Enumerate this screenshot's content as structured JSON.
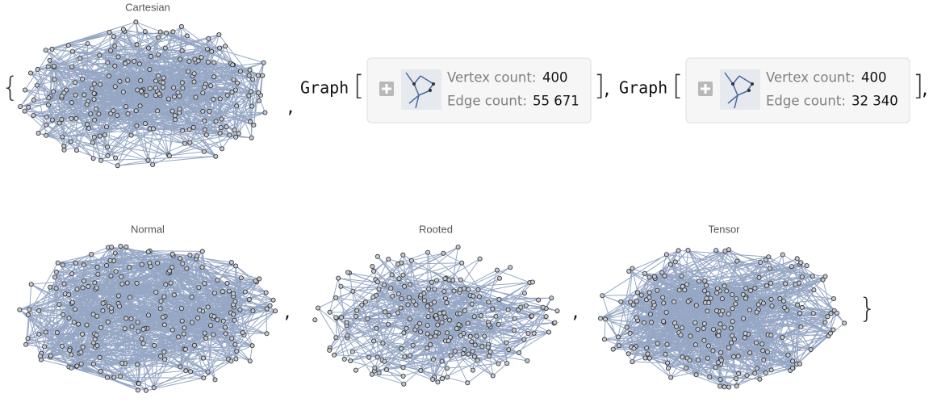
{
  "output": {
    "open_brace": "{",
    "close_brace": "}",
    "separator": ",",
    "items": [
      {
        "kind": "plot",
        "title": "Cartesian"
      },
      {
        "kind": "summary",
        "head": "Graph",
        "open": "[",
        "close": "]",
        "vertex_label": "Vertex count:",
        "vertex_count": 400,
        "edge_label": "Edge count:",
        "edge_count": {
          "value": 55671,
          "label": "55 671"
        }
      },
      {
        "kind": "summary",
        "head": "Graph",
        "open": "[",
        "close": "]",
        "vertex_label": "Vertex count:",
        "vertex_count": 400,
        "edge_label": "Edge count:",
        "edge_count": {
          "value": 32340,
          "label": "32 340"
        }
      },
      {
        "kind": "plot",
        "title": "Normal"
      },
      {
        "kind": "plot",
        "title": "Rooted"
      },
      {
        "kind": "plot",
        "title": "Tensor"
      }
    ]
  }
}
